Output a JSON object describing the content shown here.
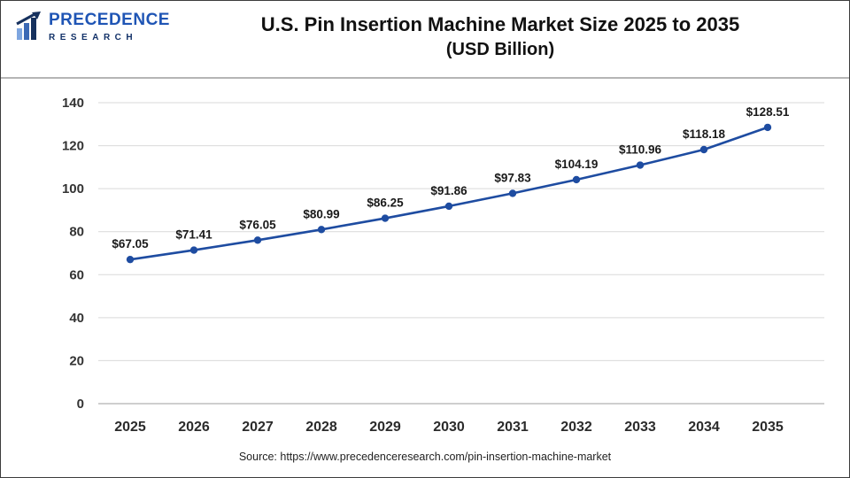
{
  "header": {
    "logo_text": "PRECEDENCE",
    "logo_subtext": "RESEARCH",
    "title_line1": "U.S. Pin Insertion Machine Market Size 2025 to 2035",
    "title_line2": "(USD Billion)"
  },
  "footer": {
    "source": "Source: https://www.precedenceresearch.com/pin-insertion-machine-market"
  },
  "chart_data": {
    "type": "line",
    "title": "U.S. Pin Insertion Machine Market Size 2025 to 2035 (USD Billion)",
    "categories": [
      "2025",
      "2026",
      "2027",
      "2028",
      "2029",
      "2030",
      "2031",
      "2032",
      "2033",
      "2034",
      "2035"
    ],
    "values": [
      67.05,
      71.41,
      76.05,
      80.99,
      86.25,
      91.86,
      97.83,
      104.19,
      110.96,
      118.18,
      128.51
    ],
    "point_labels": [
      "$67.05",
      "$71.41",
      "$76.05",
      "$80.99",
      "$86.25",
      "$91.86",
      "$97.83",
      "$104.19",
      "$110.96",
      "$118.18",
      "$128.51"
    ],
    "xlabel": "",
    "ylabel": "",
    "ylim": [
      0,
      140
    ],
    "yticks": [
      0,
      20,
      40,
      60,
      80,
      100,
      120,
      140
    ],
    "grid": true,
    "legend": false,
    "line_color": "#1e4ca1",
    "grid_color": "#d9d9d9",
    "axis_color": "#9e9e9e",
    "tick_color": "#333333",
    "data_label_color": "#1a1a1a"
  }
}
